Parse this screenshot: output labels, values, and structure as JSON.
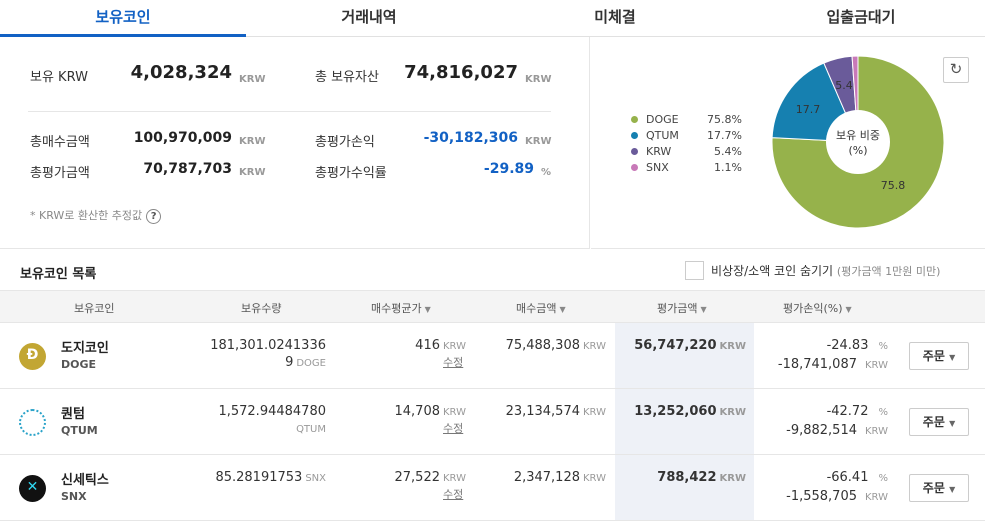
{
  "tabs": [
    "보유코인",
    "거래내역",
    "미체결",
    "입출금대기"
  ],
  "summary": {
    "krw_label": "보유 KRW",
    "krw_value": "4,028,324",
    "krw_unit": "KRW",
    "total_label": "총 보유자산",
    "total_value": "74,816,027",
    "total_unit": "KRW",
    "buy_label": "총매수금액",
    "buy_value": "100,970,009",
    "buy_unit": "KRW",
    "pl_label": "총평가손익",
    "pl_value": "-30,182,306",
    "pl_unit": "KRW",
    "eval_label": "총평가금액",
    "eval_value": "70,787,703",
    "eval_unit": "KRW",
    "rate_label": "총평가수익률",
    "rate_value": "-29.89",
    "rate_unit": "%",
    "note": "* KRW로 환산한 추정값",
    "help": "?"
  },
  "pie": {
    "center_line1": "보유 비중",
    "center_line2": "(%)",
    "legend": [
      {
        "name": "DOGE",
        "pct": "75.8%",
        "color": "#96b24b"
      },
      {
        "name": "QTUM",
        "pct": "17.7%",
        "color": "#1680b0"
      },
      {
        "name": "KRW",
        "pct": "5.4%",
        "color": "#6a5b9a"
      },
      {
        "name": "SNX",
        "pct": "1.1%",
        "color": "#c879b8"
      }
    ],
    "labels": [
      "75.8",
      "17.7",
      "5.4"
    ]
  },
  "chart_data": {
    "type": "pie",
    "categories": [
      "DOGE",
      "QTUM",
      "KRW",
      "SNX"
    ],
    "values": [
      75.8,
      17.7,
      5.4,
      1.1
    ],
    "title": "보유 비중 (%)"
  },
  "list": {
    "title": "보유코인 목록",
    "hide_label": "비상장/소액 코인 숨기기",
    "hide_sub": "(평가금액 1만원 미만)",
    "columns": [
      "보유코인",
      "보유수량",
      "매수평균가",
      "매수금액",
      "평가금액",
      "평가손익(%)"
    ],
    "rows": [
      {
        "name": "도지코인",
        "sym": "DOGE",
        "qty1": "181,301.0241336",
        "qty2": "9",
        "qty_unit": "DOGE",
        "avg": "416",
        "avg_unit": "KRW",
        "edit": "수정",
        "buy": "75,488,308",
        "buy_unit": "KRW",
        "eval": "56,747,220",
        "eval_unit": "KRW",
        "pct": "-24.83",
        "pct_unit": "%",
        "pl": "-18,741,087",
        "pl_unit": "KRW",
        "order": "주문"
      },
      {
        "name": "퀀텀",
        "sym": "QTUM",
        "qty1": "1,572.94484780",
        "qty2": "",
        "qty_unit": "QTUM",
        "avg": "14,708",
        "avg_unit": "KRW",
        "edit": "수정",
        "buy": "23,134,574",
        "buy_unit": "KRW",
        "eval": "13,252,060",
        "eval_unit": "KRW",
        "pct": "-42.72",
        "pct_unit": "%",
        "pl": "-9,882,514",
        "pl_unit": "KRW",
        "order": "주문"
      },
      {
        "name": "신세틱스",
        "sym": "SNX",
        "qty1": "85.28191753",
        "qty2": "",
        "qty_unit": "SNX",
        "avg": "27,522",
        "avg_unit": "KRW",
        "edit": "수정",
        "buy": "2,347,128",
        "buy_unit": "KRW",
        "eval": "788,422",
        "eval_unit": "KRW",
        "pct": "-66.41",
        "pct_unit": "%",
        "pl": "-1,558,705",
        "pl_unit": "KRW",
        "order": "주문"
      }
    ]
  }
}
